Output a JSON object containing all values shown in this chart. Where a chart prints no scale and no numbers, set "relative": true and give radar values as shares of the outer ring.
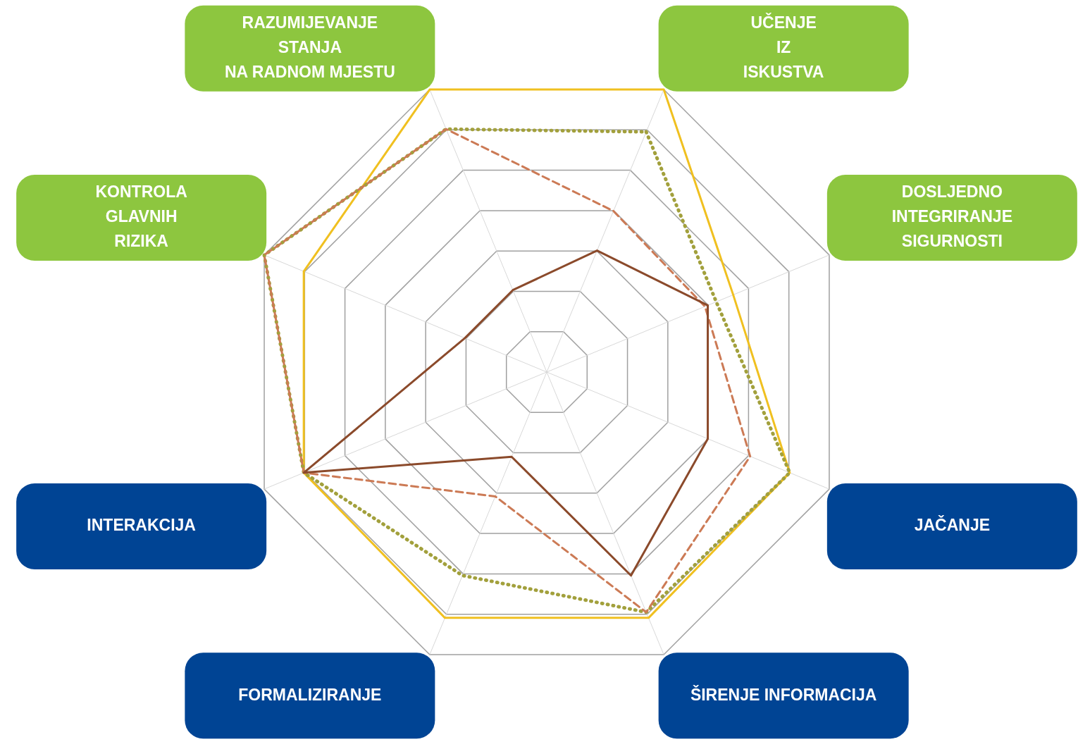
{
  "chart_data": {
    "type": "radar",
    "relative": true,
    "grid": true,
    "legend": false,
    "marker": "none",
    "categories": [
      "UČENJE\nIZ\nISKUSTVA",
      "DOSLJEDNO\nINTEGRIRANJE\nSIGURNOSTI",
      "JAČANJE",
      "ŠIRENJE INFORMACIJA",
      "FORMALIZIRANJE",
      "INTERAKCIJA",
      "KONTROLA\nGLAVNIH\nRIZIKA",
      "RAZUMIJEVANJE\nSTANJA\nNA RADNOM MJESTU"
    ],
    "series": [
      {
        "color": "#f0c020",
        "line_style": "solid",
        "values": [
          1.0,
          0.66,
          0.86,
          0.87,
          0.87,
          0.86,
          0.86,
          1.0
        ]
      },
      {
        "color": "#a2a03c",
        "line_style": "dotted",
        "values": [
          0.85,
          0.6,
          0.86,
          0.85,
          0.72,
          0.86,
          1.0,
          0.86
        ]
      },
      {
        "color": "#cc7a55",
        "line_style": "dashed",
        "values": [
          0.57,
          0.56,
          0.72,
          0.85,
          0.44,
          0.86,
          1.0,
          0.86
        ]
      },
      {
        "color": "#8b4a2b",
        "line_style": "solid",
        "values": [
          0.43,
          0.57,
          0.57,
          0.72,
          0.3,
          0.86,
          0.29,
          0.29
        ]
      }
    ]
  }
}
